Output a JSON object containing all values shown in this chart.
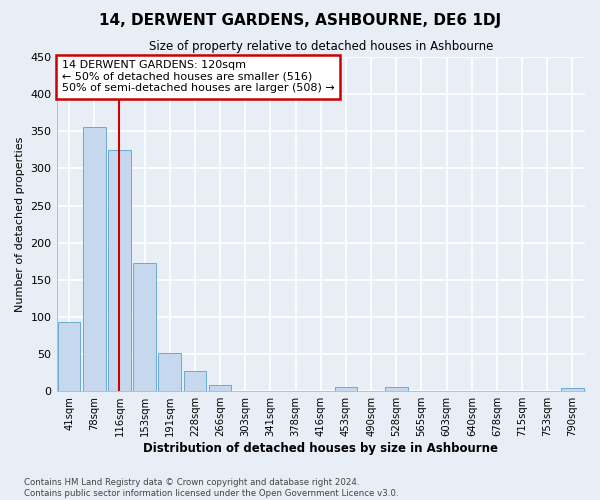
{
  "title": "14, DERWENT GARDENS, ASHBOURNE, DE6 1DJ",
  "subtitle": "Size of property relative to detached houses in Ashbourne",
  "xlabel": "Distribution of detached houses by size in Ashbourne",
  "ylabel": "Number of detached properties",
  "bar_color": "#c5d8ed",
  "bar_edge_color": "#6aaad4",
  "fig_bg_color": "#e8eef5",
  "ax_bg_color": "#e8eef5",
  "grid_color": "#ffffff",
  "categories": [
    "41sqm",
    "78sqm",
    "116sqm",
    "153sqm",
    "191sqm",
    "228sqm",
    "266sqm",
    "303sqm",
    "341sqm",
    "378sqm",
    "416sqm",
    "453sqm",
    "490sqm",
    "528sqm",
    "565sqm",
    "603sqm",
    "640sqm",
    "678sqm",
    "715sqm",
    "753sqm",
    "790sqm"
  ],
  "values": [
    93,
    356,
    325,
    172,
    52,
    27,
    8,
    0,
    0,
    0,
    0,
    5,
    0,
    5,
    0,
    0,
    0,
    0,
    0,
    0,
    4
  ],
  "vline_x": 2.0,
  "vline_color": "#cc0000",
  "annotation_text": "14 DERWENT GARDENS: 120sqm\n← 50% of detached houses are smaller (516)\n50% of semi-detached houses are larger (508) →",
  "annotation_box_color": "#ffffff",
  "annotation_box_edge": "#cc0000",
  "ylim": [
    0,
    450
  ],
  "yticks": [
    0,
    50,
    100,
    150,
    200,
    250,
    300,
    350,
    400,
    450
  ],
  "footer_line1": "Contains HM Land Registry data © Crown copyright and database right 2024.",
  "footer_line2": "Contains public sector information licensed under the Open Government Licence v3.0."
}
